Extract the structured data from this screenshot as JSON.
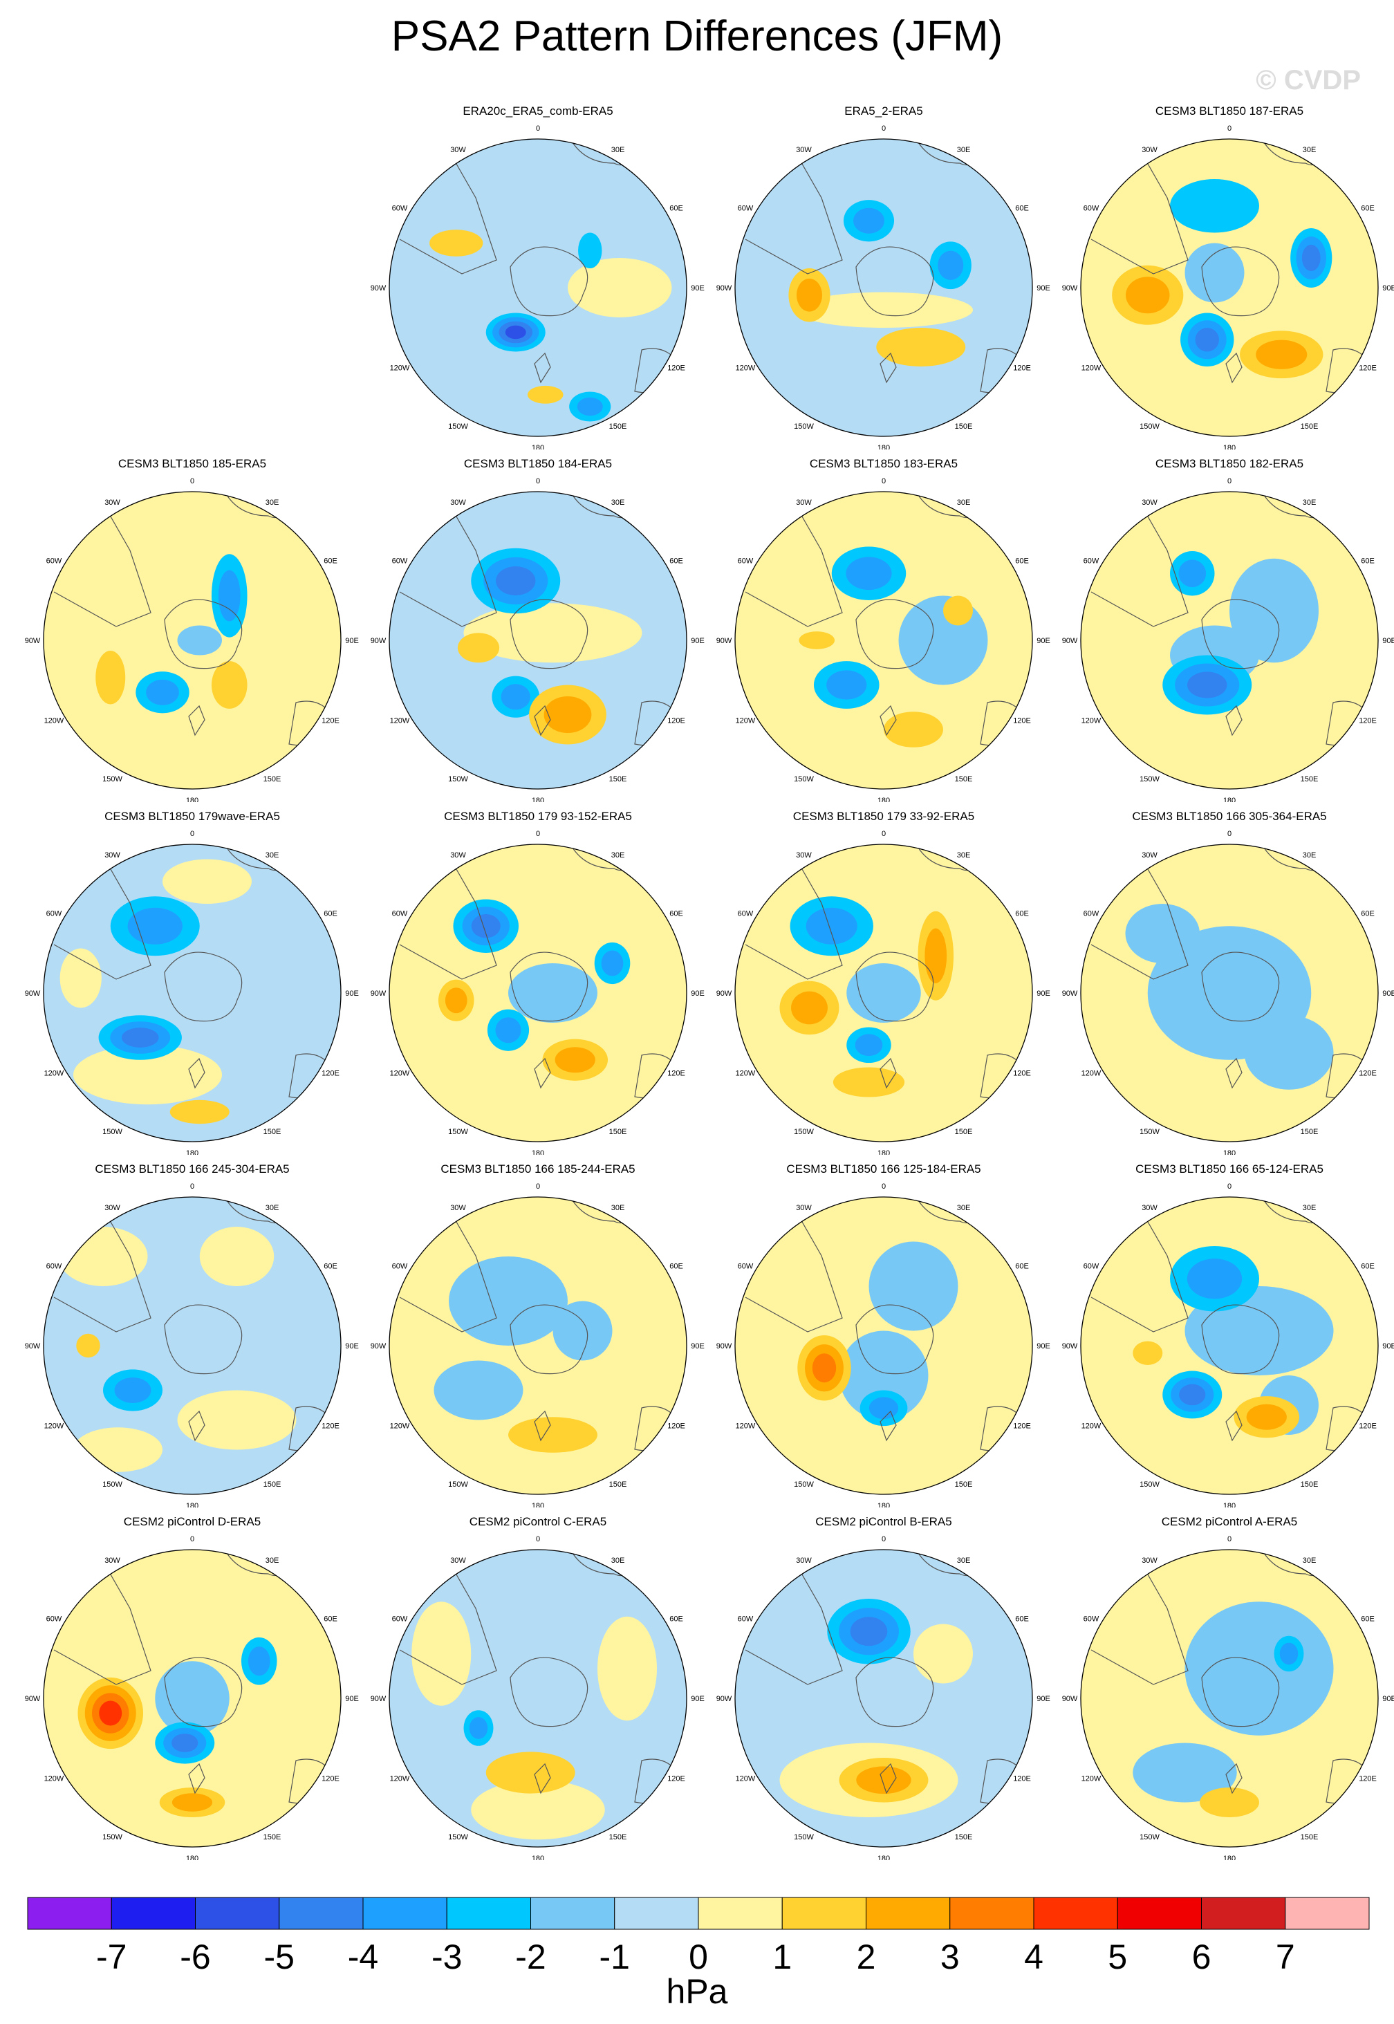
{
  "title": "PSA2 Pattern Differences (JFM)",
  "watermark": "© CVDP",
  "units": "hPa",
  "colorbar": {
    "colors": [
      "#8c1ef0",
      "#1e1ef0",
      "#2d50e6",
      "#3282f0",
      "#1ea0ff",
      "#00c8ff",
      "#78c8f5",
      "#b4dcf5",
      "#fff5a0",
      "#ffd232",
      "#ffaa00",
      "#ff7d00",
      "#ff3200",
      "#f00000",
      "#d21e1e",
      "#ffb4b4"
    ],
    "ticks": [
      "-7",
      "-6",
      "-5",
      "-4",
      "-3",
      "-2",
      "-1",
      "0",
      "1",
      "2",
      "3",
      "4",
      "5",
      "6",
      "7"
    ]
  },
  "map_labels": {
    "top": "0",
    "bottom": "180",
    "upper_left": "30W",
    "upper_right": "30E",
    "mid_upper_left": "60W",
    "mid_upper_right": "60E",
    "left": "90W",
    "right": "90E",
    "mid_lower_left": "120W",
    "mid_lower_right": "120E",
    "lower_left": "150W",
    "lower_right": "150E"
  },
  "panels": [
    {
      "title": "ERA20c_ERA5_comb-ERA5",
      "row": 0,
      "col": 1,
      "bg": "b",
      "blobs": [
        [
          -4.8,
          -0.15,
          0.3,
          0.2,
          0.13
        ],
        [
          -2.5,
          0.35,
          0.8,
          0.14,
          0.1
        ],
        [
          1.3,
          -0.55,
          -0.3,
          0.18,
          0.09
        ],
        [
          1.3,
          0.05,
          0.72,
          0.12,
          0.06
        ],
        [
          -1.5,
          0.35,
          -0.25,
          0.08,
          0.12
        ]
      ],
      "extra": [
        [
          0.5,
          0.55,
          0.0,
          0.35,
          0.2
        ]
      ]
    },
    {
      "title": "ERA5_2-ERA5",
      "row": 0,
      "col": 2,
      "bg": "b",
      "blobs": [
        [
          2.5,
          -0.5,
          0.05,
          0.14,
          0.18
        ],
        [
          1.5,
          0.25,
          0.4,
          0.3,
          0.13
        ],
        [
          -2.0,
          -0.1,
          -0.45,
          0.17,
          0.14
        ],
        [
          -2.0,
          0.45,
          -0.15,
          0.14,
          0.16
        ],
        [
          0.6,
          0.0,
          0.15,
          0.6,
          0.12
        ]
      ],
      "extra": []
    },
    {
      "title": "CESM3 BLT1850 187-ERA5",
      "row": 0,
      "col": 3,
      "bg": "y",
      "blobs": [
        [
          -3.5,
          0.55,
          -0.2,
          0.14,
          0.2
        ],
        [
          -3.5,
          -0.15,
          0.35,
          0.18,
          0.18
        ],
        [
          2.5,
          -0.55,
          0.05,
          0.24,
          0.2
        ],
        [
          2.5,
          0.35,
          0.45,
          0.28,
          0.16
        ],
        [
          -1.5,
          -0.1,
          -0.55,
          0.3,
          0.18
        ],
        [
          -0.6,
          -0.1,
          -0.1,
          0.2,
          0.2
        ]
      ],
      "extra": []
    },
    {
      "title": "CESM3 BLT1850 185-ERA5",
      "row": 1,
      "col": 0,
      "bg": "y",
      "blobs": [
        [
          -2.0,
          0.25,
          -0.3,
          0.12,
          0.28
        ],
        [
          -2.0,
          -0.2,
          0.35,
          0.18,
          0.14
        ],
        [
          1.5,
          -0.55,
          0.25,
          0.1,
          0.18
        ],
        [
          1.5,
          0.25,
          0.3,
          0.12,
          0.16
        ],
        [
          -0.6,
          0.05,
          0.0,
          0.15,
          0.1
        ]
      ],
      "extra": []
    },
    {
      "title": "CESM3 BLT1850 184-ERA5",
      "row": 1,
      "col": 1,
      "bg": "b",
      "blobs": [
        [
          -3.0,
          -0.15,
          -0.4,
          0.3,
          0.22
        ],
        [
          -2.0,
          -0.15,
          0.38,
          0.16,
          0.14
        ],
        [
          2.0,
          0.2,
          0.5,
          0.26,
          0.2
        ],
        [
          1.5,
          -0.4,
          0.05,
          0.14,
          0.1
        ],
        [
          0.5,
          0.1,
          -0.05,
          0.6,
          0.2
        ]
      ],
      "extra": []
    },
    {
      "title": "CESM3 BLT1850 183-ERA5",
      "row": 1,
      "col": 2,
      "bg": "y",
      "blobs": [
        [
          -2.5,
          -0.1,
          -0.45,
          0.25,
          0.18
        ],
        [
          -2.5,
          -0.25,
          0.3,
          0.22,
          0.16
        ],
        [
          1.5,
          0.2,
          0.6,
          0.2,
          0.12
        ],
        [
          1.5,
          0.5,
          -0.2,
          0.1,
          0.1
        ],
        [
          -0.8,
          0.4,
          0.0,
          0.3,
          0.3
        ],
        [
          1.5,
          -0.45,
          0.0,
          0.12,
          0.06
        ]
      ],
      "extra": []
    },
    {
      "title": "CESM3 BLT1850 182-ERA5",
      "row": 1,
      "col": 3,
      "bg": "y",
      "blobs": [
        [
          -3.2,
          -0.15,
          0.3,
          0.3,
          0.2
        ],
        [
          -2.0,
          -0.25,
          -0.45,
          0.15,
          0.15
        ],
        [
          -0.7,
          0.3,
          -0.2,
          0.3,
          0.35
        ],
        [
          -0.7,
          -0.1,
          0.1,
          0.3,
          0.2
        ]
      ],
      "extra": []
    },
    {
      "title": "CESM3 BLT1850 179wave-ERA5",
      "row": 2,
      "col": 0,
      "bg": "b",
      "blobs": [
        [
          -3.5,
          -0.35,
          0.3,
          0.28,
          0.15
        ],
        [
          -2.5,
          -0.25,
          -0.45,
          0.3,
          0.2
        ],
        [
          1.5,
          0.05,
          0.8,
          0.2,
          0.08
        ],
        [
          0.6,
          -0.3,
          0.55,
          0.5,
          0.2
        ],
        [
          0.6,
          0.1,
          -0.75,
          0.3,
          0.15
        ],
        [
          0.6,
          -0.75,
          -0.1,
          0.14,
          0.2
        ]
      ],
      "extra": []
    },
    {
      "title": "CESM3 BLT1850 179 93-152-ERA5",
      "row": 2,
      "col": 1,
      "bg": "y",
      "blobs": [
        [
          -3.0,
          -0.35,
          -0.45,
          0.22,
          0.18
        ],
        [
          -2.0,
          0.5,
          -0.2,
          0.12,
          0.14
        ],
        [
          -2.0,
          -0.2,
          0.25,
          0.14,
          0.14
        ],
        [
          2.5,
          0.25,
          0.45,
          0.22,
          0.14
        ],
        [
          2.0,
          -0.55,
          0.05,
          0.12,
          0.14
        ],
        [
          -0.6,
          0.1,
          0.0,
          0.3,
          0.2
        ]
      ],
      "extra": []
    },
    {
      "title": "CESM3 BLT1850 179 33-92-ERA5",
      "row": 2,
      "col": 2,
      "bg": "y",
      "blobs": [
        [
          -2.0,
          -0.35,
          -0.45,
          0.28,
          0.2
        ],
        [
          2.5,
          -0.5,
          0.1,
          0.2,
          0.18
        ],
        [
          2.0,
          0.35,
          -0.25,
          0.12,
          0.3
        ],
        [
          -2.0,
          -0.1,
          0.35,
          0.15,
          0.12
        ],
        [
          1.5,
          -0.1,
          0.6,
          0.24,
          0.1
        ],
        [
          -0.6,
          0.0,
          0.0,
          0.25,
          0.2
        ]
      ],
      "extra": []
    },
    {
      "title": "CESM3 BLT1850 166 305-364-ERA5",
      "row": 2,
      "col": 3,
      "bg": "y",
      "blobs": [
        [
          -0.6,
          0.0,
          0.0,
          0.55,
          0.45
        ],
        [
          -0.6,
          0.4,
          0.4,
          0.3,
          0.25
        ],
        [
          -0.6,
          -0.45,
          -0.4,
          0.25,
          0.2
        ]
      ],
      "extra": []
    },
    {
      "title": "CESM3 BLT1850 166 245-304-ERA5",
      "row": 3,
      "col": 0,
      "bg": "b",
      "blobs": [
        [
          -2.0,
          -0.4,
          0.3,
          0.2,
          0.14
        ],
        [
          1.5,
          -0.7,
          0.0,
          0.08,
          0.08
        ],
        [
          0.6,
          -0.6,
          -0.6,
          0.3,
          0.2
        ],
        [
          0.6,
          0.3,
          -0.6,
          0.25,
          0.2
        ],
        [
          0.6,
          0.3,
          0.5,
          0.4,
          0.2
        ],
        [
          0.6,
          -0.5,
          0.7,
          0.3,
          0.15
        ]
      ],
      "extra": []
    },
    {
      "title": "CESM3 BLT1850 166 185-244-ERA5",
      "row": 3,
      "col": 1,
      "bg": "y",
      "blobs": [
        [
          1.5,
          0.1,
          0.6,
          0.3,
          0.12
        ],
        [
          -0.6,
          -0.2,
          -0.3,
          0.4,
          0.3
        ],
        [
          -0.6,
          -0.4,
          0.3,
          0.3,
          0.2
        ],
        [
          -0.6,
          0.3,
          -0.1,
          0.2,
          0.2
        ]
      ],
      "extra": []
    },
    {
      "title": "CESM3 BLT1850 166 125-184-ERA5",
      "row": 3,
      "col": 2,
      "bg": "y",
      "blobs": [
        [
          3.5,
          -0.4,
          0.15,
          0.18,
          0.22
        ],
        [
          -2.0,
          0.0,
          0.42,
          0.16,
          0.12
        ],
        [
          -0.7,
          0.0,
          0.2,
          0.3,
          0.3
        ],
        [
          -0.7,
          0.2,
          -0.4,
          0.3,
          0.3
        ]
      ],
      "extra": []
    },
    {
      "title": "CESM3 BLT1850 166 65-124-ERA5",
      "row": 3,
      "col": 3,
      "bg": "y",
      "blobs": [
        [
          -2.0,
          -0.1,
          -0.45,
          0.3,
          0.22
        ],
        [
          -3.0,
          -0.25,
          0.33,
          0.2,
          0.16
        ],
        [
          2.0,
          0.25,
          0.48,
          0.22,
          0.14
        ],
        [
          1.5,
          -0.55,
          0.05,
          0.1,
          0.08
        ],
        [
          -0.7,
          0.2,
          -0.1,
          0.5,
          0.3
        ],
        [
          -0.7,
          0.4,
          0.4,
          0.2,
          0.2
        ]
      ],
      "extra": []
    },
    {
      "title": "CESM2 piControl D-ERA5",
      "row": 4,
      "col": 0,
      "bg": "y",
      "blobs": [
        [
          4.0,
          -0.55,
          0.1,
          0.22,
          0.24
        ],
        [
          -3.0,
          -0.05,
          0.3,
          0.2,
          0.14
        ],
        [
          -2.0,
          0.45,
          -0.25,
          0.12,
          0.16
        ],
        [
          2.0,
          0.0,
          0.7,
          0.22,
          0.1
        ],
        [
          -0.7,
          0.0,
          0.0,
          0.25,
          0.25
        ]
      ],
      "extra": []
    },
    {
      "title": "CESM2 piControl C-ERA5",
      "row": 4,
      "col": 1,
      "bg": "b",
      "blobs": [
        [
          -2.0,
          -0.4,
          0.2,
          0.1,
          0.12
        ],
        [
          1.5,
          -0.05,
          0.5,
          0.3,
          0.14
        ],
        [
          0.6,
          -0.65,
          -0.3,
          0.2,
          0.35
        ],
        [
          0.6,
          0.6,
          -0.2,
          0.2,
          0.35
        ],
        [
          0.6,
          0.0,
          0.75,
          0.45,
          0.2
        ]
      ],
      "extra": []
    },
    {
      "title": "CESM2 piControl B-ERA5",
      "row": 4,
      "col": 2,
      "bg": "b",
      "blobs": [
        [
          -3.0,
          -0.1,
          -0.45,
          0.28,
          0.22
        ],
        [
          2.5,
          0.0,
          0.55,
          0.3,
          0.15
        ],
        [
          0.6,
          -0.1,
          0.55,
          0.6,
          0.25
        ],
        [
          0.6,
          0.4,
          -0.3,
          0.2,
          0.2
        ]
      ],
      "extra": []
    },
    {
      "title": "CESM2 piControl A-ERA5",
      "row": 4,
      "col": 3,
      "bg": "y",
      "blobs": [
        [
          -2.0,
          0.4,
          -0.3,
          0.1,
          0.12
        ],
        [
          1.5,
          0.0,
          0.7,
          0.2,
          0.1
        ],
        [
          -0.6,
          0.2,
          -0.2,
          0.5,
          0.45
        ],
        [
          -0.6,
          -0.3,
          0.5,
          0.35,
          0.2
        ]
      ],
      "extra": []
    }
  ]
}
